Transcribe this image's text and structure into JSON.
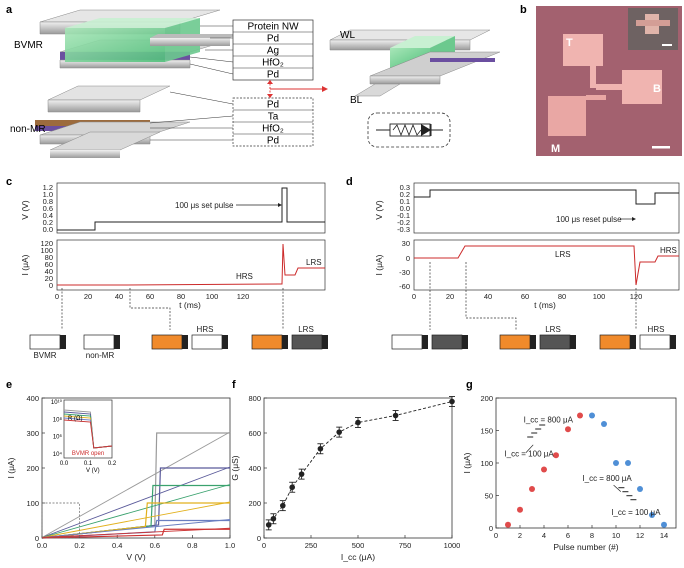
{
  "panel_labels": {
    "a": "a",
    "b": "b",
    "c": "c",
    "d": "d",
    "e": "e",
    "f": "f",
    "g": "g"
  },
  "panel_a": {
    "bvmr_label": "BVMR",
    "nonmr_label": "non-MR",
    "bvmr_layers": [
      "Protein NW",
      "Pd",
      "Ag",
      "HfO₂",
      "Pd"
    ],
    "nonmr_layers": [
      "Pd",
      "Ta",
      "HfO₂",
      "Pd"
    ],
    "wl": "WL",
    "bl": "BL"
  },
  "panel_b": {
    "T": "T",
    "B": "B",
    "M": "M"
  },
  "panel_c": {
    "v_label": "V (V)",
    "i_label": "I (μA)",
    "t_label": "t (ms)",
    "pulse_text": "100 μs set pulse",
    "hrs": "HRS",
    "lrs": "LRS",
    "v_ticks": [
      "1.2",
      "1.0",
      "0.8",
      "0.6",
      "0.4",
      "0.2",
      "0.0"
    ],
    "i_ticks": [
      "120",
      "100",
      "80",
      "60",
      "40",
      "20",
      "0"
    ],
    "t_ticks": [
      "0",
      "20",
      "40",
      "60",
      "80",
      "100",
      "120"
    ],
    "state_bvmr": "BVMR",
    "state_nonmr": "non-MR",
    "state_hrs": "HRS",
    "state_lrs": "LRS"
  },
  "panel_d": {
    "v_label": "V (V)",
    "i_label": "I (μA)",
    "t_label": "t (ms)",
    "pulse_text": "100 μs reset pulse",
    "hrs": "HRS",
    "lrs": "LRS",
    "v_ticks": [
      "0.3",
      "0.2",
      "0.1",
      "0.0",
      "-0.1",
      "-0.2",
      "-0.3"
    ],
    "i_ticks": [
      "30",
      "0",
      "-30",
      "-60"
    ],
    "t_ticks": [
      "0",
      "20",
      "40",
      "60",
      "80",
      "100",
      "120"
    ],
    "state_lrs": "LRS",
    "state_hrs": "HRS"
  },
  "chart_data": [
    {
      "id": "e",
      "type": "line",
      "xlabel": "V (V)",
      "ylabel": "I (μA)",
      "xlim": [
        0,
        1.0
      ],
      "ylim": [
        0,
        400
      ],
      "x_ticks": [
        "0.0",
        "0.2",
        "0.4",
        "0.6",
        "0.8",
        "1.0"
      ],
      "y_ticks": [
        "0",
        "100",
        "200",
        "300",
        "400"
      ],
      "series": [
        {
          "name": "300",
          "color": "#9a9a9a",
          "threshold": 0.6,
          "compliance": 300
        },
        {
          "name": "200",
          "color": "#5a5a9a",
          "threshold": 0.62,
          "compliance": 200
        },
        {
          "name": "150",
          "color": "#3aa26e",
          "threshold": 0.58,
          "compliance": 150
        },
        {
          "name": "100",
          "color": "#e2b11e",
          "threshold": 0.55,
          "compliance": 100
        },
        {
          "name": "50",
          "color": "#6a7ec0",
          "threshold": 0.6,
          "compliance": 50
        },
        {
          "name": "25",
          "color": "#cc3333",
          "threshold": 0.64,
          "compliance": 25
        }
      ],
      "inset": {
        "x_ticks": [
          "0.0",
          "0.1",
          "0.2"
        ],
        "y_ticks": [
          "10⁴",
          "10⁶",
          "10⁸",
          "10¹⁰"
        ],
        "ylabel": "R (Ω)",
        "xlabel": "V (V)",
        "note": "BVMR open"
      }
    },
    {
      "id": "f",
      "type": "scatter",
      "xlabel": "I_cc (μA)",
      "ylabel": "G (μS)",
      "xlim": [
        0,
        1000
      ],
      "ylim": [
        0,
        800
      ],
      "x_ticks": [
        "0",
        "250",
        "500",
        "750",
        "1000"
      ],
      "y_ticks": [
        "0",
        "200",
        "400",
        "600",
        "800"
      ],
      "x": [
        25,
        50,
        100,
        150,
        200,
        300,
        400,
        500,
        700,
        1000
      ],
      "y": [
        75,
        110,
        185,
        290,
        365,
        510,
        605,
        660,
        700,
        780
      ]
    },
    {
      "id": "g",
      "type": "scatter",
      "xlabel": "Pulse number (#)",
      "ylabel": "I (μA)",
      "xlim": [
        0,
        15
      ],
      "ylim": [
        0,
        200
      ],
      "x_ticks": [
        "0",
        "2",
        "4",
        "6",
        "8",
        "10",
        "12",
        "14"
      ],
      "y_ticks": [
        "0",
        "50",
        "100",
        "150",
        "200"
      ],
      "set_points": {
        "color": "#e04b4b",
        "x": [
          1,
          2,
          3,
          4,
          5,
          6,
          7
        ],
        "y": [
          5,
          28,
          60,
          90,
          112,
          152,
          173
        ]
      },
      "reset_points": {
        "color": "#4f8fd6",
        "x": [
          8,
          9,
          10,
          11,
          12,
          13,
          14
        ],
        "y": [
          173,
          160,
          100,
          100,
          60,
          20,
          5
        ]
      },
      "ann_set_top": "I_cc = 800 μA",
      "ann_set_bot": "I_cc = 100 μA",
      "ann_reset_top": "I_cc = 800 μA",
      "ann_reset_bot": "I_cc = 100 μA"
    }
  ]
}
